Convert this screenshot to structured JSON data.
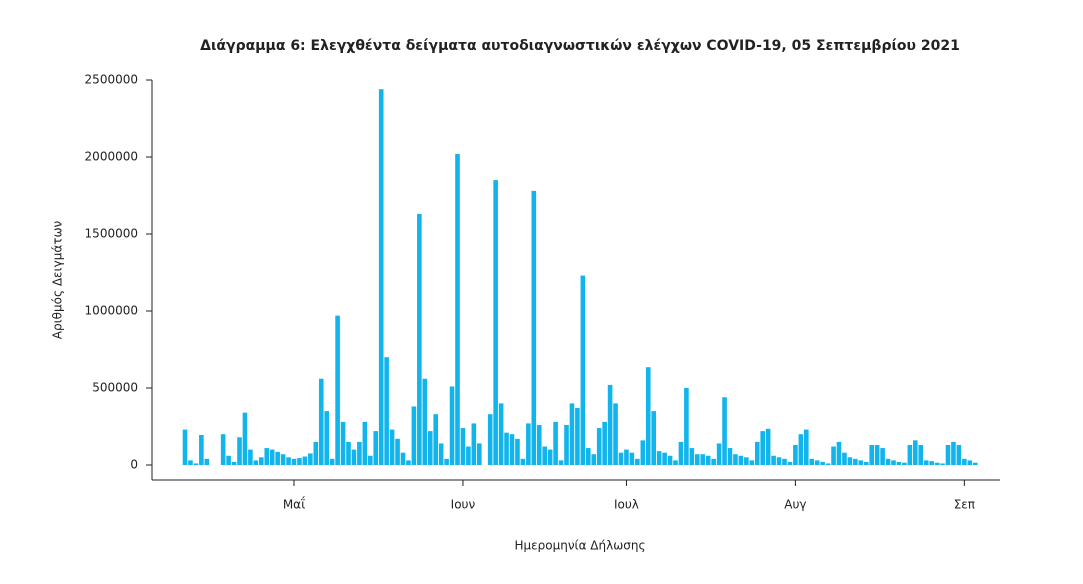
{
  "chart_data": {
    "type": "bar",
    "title": "Διάγραμμα 6: Ελεγχθέντα δείγματα αυτοδιαγνωστικών ελέγχων COVID-19, 05 Σεπτεμβρίου 2021",
    "x_label": "Ημερομηνία Δήλωσης",
    "y_label": "Αριθμός Δειγμάτων",
    "color": "#12b4ec",
    "ylim": [
      0,
      2500000
    ],
    "yticks": [
      0,
      500000,
      1000000,
      1500000,
      2000000,
      2500000
    ],
    "grid": false,
    "categories": [
      null,
      null,
      null,
      null,
      null,
      null,
      null,
      null,
      null,
      null,
      null,
      null,
      null,
      null,
      null,
      null,
      null,
      null,
      null,
      null,
      "Μαΐ",
      null,
      null,
      null,
      null,
      null,
      null,
      null,
      null,
      null,
      null,
      null,
      null,
      null,
      null,
      null,
      null,
      null,
      null,
      null,
      null,
      null,
      null,
      null,
      null,
      null,
      null,
      null,
      null,
      null,
      null,
      "Ιουν",
      null,
      null,
      null,
      null,
      null,
      null,
      null,
      null,
      null,
      null,
      null,
      null,
      null,
      null,
      null,
      null,
      null,
      null,
      null,
      null,
      null,
      null,
      null,
      null,
      null,
      null,
      null,
      null,
      null,
      "Ιουλ",
      null,
      null,
      null,
      null,
      null,
      null,
      null,
      null,
      null,
      null,
      null,
      null,
      null,
      null,
      null,
      null,
      null,
      null,
      null,
      null,
      null,
      null,
      null,
      null,
      null,
      null,
      null,
      null,
      null,
      null,
      "Αυγ",
      null,
      null,
      null,
      null,
      null,
      null,
      null,
      null,
      null,
      null,
      null,
      null,
      null,
      null,
      null,
      null,
      null,
      null,
      null,
      null,
      null,
      null,
      null,
      null,
      null,
      null,
      null,
      null,
      null,
      null,
      "Σεπ",
      null,
      null
    ],
    "values": [
      230000,
      30000,
      10000,
      195000,
      40000,
      0,
      0,
      200000,
      60000,
      20000,
      180000,
      340000,
      100000,
      30000,
      50000,
      110000,
      100000,
      85000,
      70000,
      50000,
      40000,
      45000,
      55000,
      75000,
      150000,
      560000,
      350000,
      40000,
      970000,
      280000,
      150000,
      100000,
      150000,
      280000,
      60000,
      220000,
      2440000,
      700000,
      230000,
      170000,
      80000,
      30000,
      380000,
      1630000,
      560000,
      220000,
      330000,
      140000,
      40000,
      510000,
      2020000,
      240000,
      120000,
      270000,
      140000,
      0,
      330000,
      1850000,
      400000,
      210000,
      200000,
      170000,
      40000,
      270000,
      1780000,
      260000,
      120000,
      100000,
      280000,
      30000,
      260000,
      400000,
      370000,
      1230000,
      110000,
      70000,
      240000,
      280000,
      520000,
      400000,
      80000,
      100000,
      80000,
      40000,
      160000,
      635000,
      350000,
      90000,
      80000,
      60000,
      30000,
      150000,
      500000,
      110000,
      70000,
      70000,
      60000,
      40000,
      140000,
      440000,
      110000,
      70000,
      60000,
      50000,
      30000,
      150000,
      220000,
      235000,
      60000,
      50000,
      40000,
      20000,
      130000,
      200000,
      230000,
      40000,
      30000,
      20000,
      10000,
      120000,
      150000,
      80000,
      50000,
      40000,
      30000,
      20000,
      130000,
      130000,
      110000,
      40000,
      30000,
      20000,
      15000,
      130000,
      160000,
      130000,
      30000,
      25000,
      15000,
      10000,
      130000,
      150000,
      130000,
      40000,
      30000,
      15000
    ]
  }
}
